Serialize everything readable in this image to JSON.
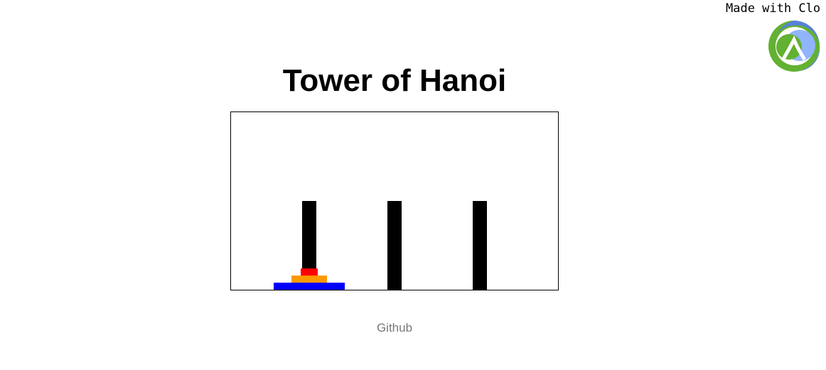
{
  "banner": {
    "made_with_text": "Made with Clo",
    "logo_icon": "clojure-logo-icon",
    "logo_colors": {
      "green": "#63b132",
      "blue": "#5881d8",
      "light_blue": "#91b4ff"
    }
  },
  "page_title": "Tower of Hanoi",
  "game": {
    "pegs": [
      {
        "name": "peg-1",
        "disks": [
          {
            "size": 3,
            "color": "#0000ff"
          },
          {
            "size": 2,
            "color": "#ff9900"
          },
          {
            "size": 1,
            "color": "#ff0000"
          }
        ]
      },
      {
        "name": "peg-2",
        "disks": []
      },
      {
        "name": "peg-3",
        "disks": []
      }
    ],
    "peg_color": "#000000"
  },
  "footer": {
    "github_label": "Github"
  }
}
